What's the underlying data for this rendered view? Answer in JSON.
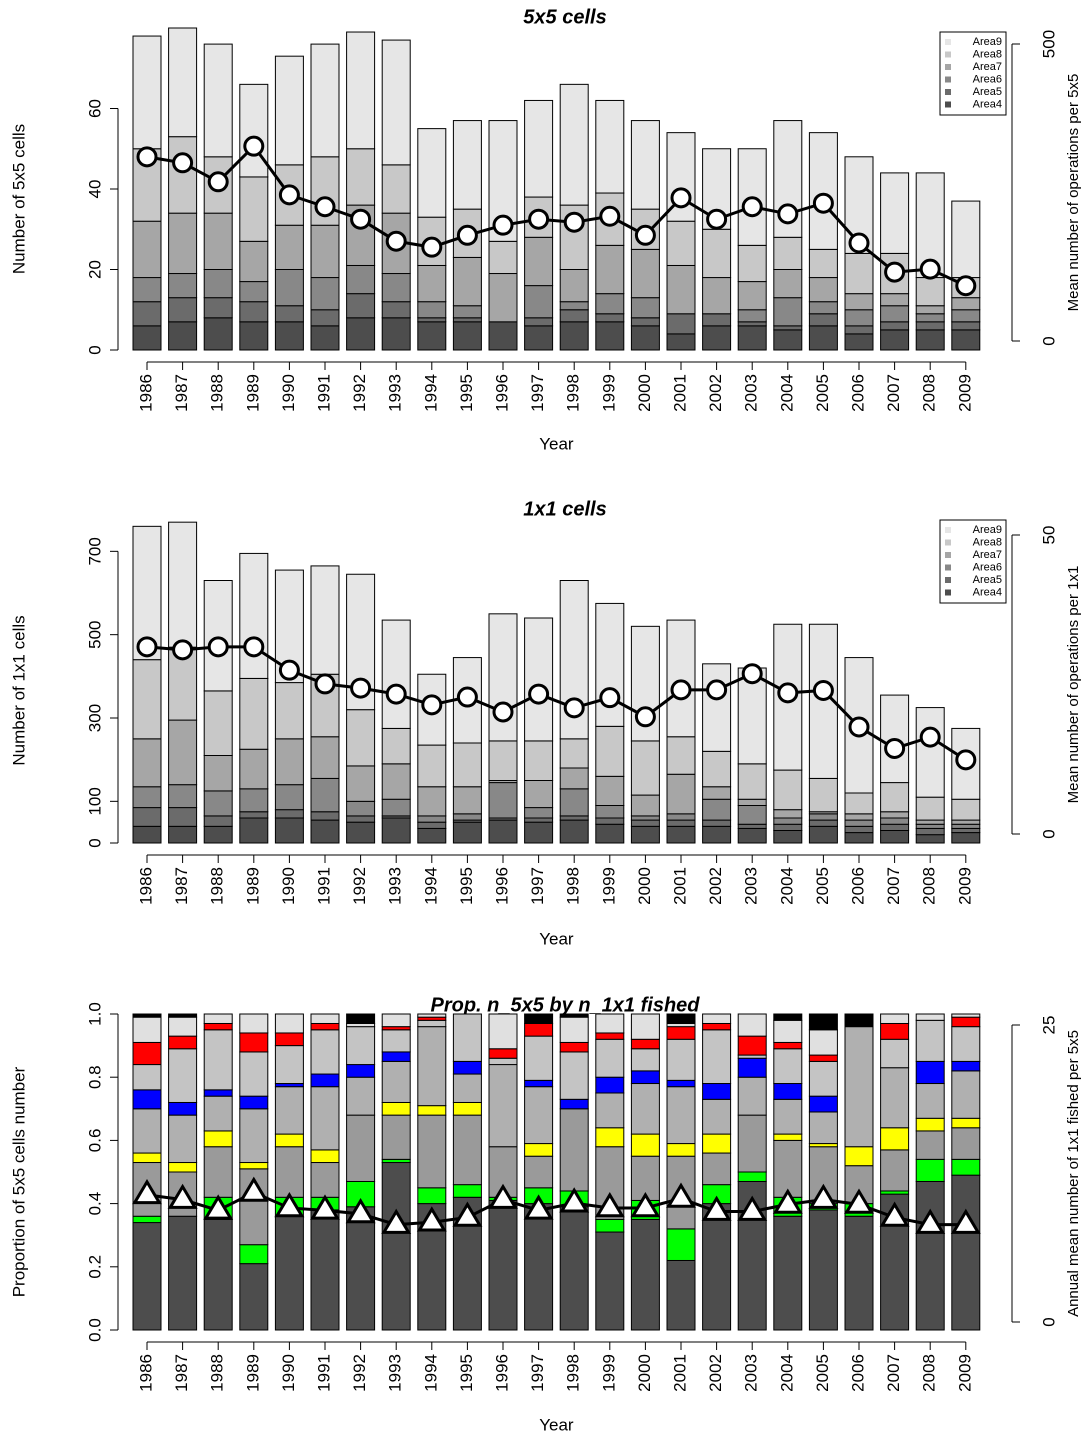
{
  "chart_data": [
    {
      "type": "bar",
      "title": "5x5 cells",
      "xlabel": "Year",
      "ylabel": "Number of 5x5 cells",
      "y2label": "Mean number of operations per 5x5",
      "categories": [
        "1986",
        "1987",
        "1988",
        "1989",
        "1990",
        "1991",
        "1992",
        "1993",
        "1994",
        "1995",
        "1996",
        "1997",
        "1998",
        "1999",
        "2000",
        "2001",
        "2002",
        "2003",
        "2004",
        "2005",
        "2006",
        "2007",
        "2008",
        "2009"
      ],
      "stacked": true,
      "legend": "top-right",
      "marker": "circle",
      "ylim": [
        0,
        80
      ],
      "yticks": [
        0,
        20,
        40,
        60
      ],
      "y2lim": [
        0,
        500
      ],
      "y2ticks": [
        0,
        500
      ],
      "series": [
        {
          "name": "Area4",
          "color": "#4d4d4d",
          "values": [
            6,
            7,
            8,
            7,
            7,
            6,
            8,
            8,
            7,
            7,
            7,
            6,
            7,
            7,
            6,
            4,
            6,
            6,
            5,
            6,
            4,
            5,
            5,
            5
          ]
        },
        {
          "name": "Area5",
          "color": "#6b6b6b",
          "values": [
            6,
            6,
            5,
            5,
            4,
            4,
            6,
            4,
            1,
            1,
            0,
            2,
            3,
            2,
            2,
            5,
            3,
            1,
            1,
            3,
            2,
            2,
            2,
            2
          ]
        },
        {
          "name": "Area6",
          "color": "#888888",
          "values": [
            6,
            6,
            7,
            5,
            9,
            8,
            7,
            7,
            4,
            3,
            0,
            8,
            2,
            5,
            5,
            0,
            0,
            3,
            7,
            3,
            4,
            4,
            2,
            3
          ]
        },
        {
          "name": "Area7",
          "color": "#a6a6a6",
          "values": [
            14,
            15,
            14,
            10,
            11,
            13,
            15,
            15,
            9,
            12,
            12,
            12,
            8,
            12,
            12,
            12,
            9,
            7,
            7,
            6,
            4,
            3,
            2,
            3
          ]
        },
        {
          "name": "Area8",
          "color": "#c8c8c8",
          "values": [
            18,
            19,
            14,
            16,
            15,
            17,
            14,
            12,
            12,
            12,
            8,
            10,
            16,
            13,
            10,
            11,
            12,
            9,
            8,
            7,
            10,
            10,
            7,
            5
          ]
        },
        {
          "name": "Area9",
          "color": "#e6e6e6",
          "values": [
            28,
            27,
            28,
            23,
            27,
            28,
            29,
            31,
            22,
            22,
            30,
            24,
            30,
            23,
            22,
            22,
            20,
            24,
            29,
            29,
            24,
            20,
            26,
            19
          ]
        },
        {
          "type": "line",
          "axis": "y2",
          "color": "#000000",
          "values": [
            310,
            300,
            268,
            328,
            246,
            226,
            205,
            168,
            158,
            178,
            195,
            205,
            200,
            210,
            178,
            241,
            205,
            226,
            214,
            232,
            165,
            116,
            121,
            93
          ]
        }
      ]
    },
    {
      "type": "bar",
      "title": "1x1 cells",
      "xlabel": "Year",
      "ylabel": "Number of 1x1 cells",
      "y2label": "Mean number of operations per 1x1",
      "categories": [
        "1986",
        "1987",
        "1988",
        "1989",
        "1990",
        "1991",
        "1992",
        "1993",
        "1994",
        "1995",
        "1996",
        "1997",
        "1998",
        "1999",
        "2000",
        "2001",
        "2002",
        "2003",
        "2004",
        "2005",
        "2006",
        "2007",
        "2008",
        "2009"
      ],
      "stacked": true,
      "legend": "top-right",
      "marker": "circle",
      "ylim": [
        0,
        780
      ],
      "yticks": [
        0,
        100,
        300,
        500,
        700
      ],
      "y2lim": [
        0,
        50
      ],
      "y2ticks": [
        0,
        50
      ],
      "series": [
        {
          "name": "Area4",
          "color": "#4d4d4d",
          "values": [
            40,
            40,
            40,
            60,
            60,
            55,
            50,
            60,
            35,
            50,
            55,
            50,
            55,
            45,
            40,
            40,
            40,
            35,
            30,
            40,
            25,
            30,
            20,
            25
          ]
        },
        {
          "name": "Area5",
          "color": "#6b6b6b",
          "values": [
            45,
            45,
            25,
            15,
            20,
            20,
            15,
            5,
            15,
            5,
            5,
            10,
            10,
            15,
            15,
            15,
            15,
            10,
            15,
            15,
            15,
            15,
            15,
            10
          ]
        },
        {
          "name": "Area6",
          "color": "#888888",
          "values": [
            50,
            55,
            60,
            55,
            60,
            80,
            35,
            40,
            15,
            15,
            85,
            25,
            65,
            30,
            10,
            15,
            50,
            45,
            15,
            15,
            15,
            15,
            10,
            10
          ]
        },
        {
          "name": "Area7",
          "color": "#a6a6a6",
          "values": [
            115,
            155,
            85,
            95,
            110,
            100,
            85,
            85,
            70,
            65,
            5,
            65,
            50,
            70,
            50,
            95,
            30,
            15,
            20,
            5,
            15,
            15,
            10,
            10
          ]
        },
        {
          "name": "Area8",
          "color": "#c8c8c8",
          "values": [
            190,
            175,
            155,
            170,
            135,
            150,
            135,
            85,
            100,
            105,
            95,
            95,
            70,
            120,
            130,
            90,
            85,
            85,
            95,
            80,
            50,
            70,
            55,
            50
          ]
        },
        {
          "name": "Area9",
          "color": "#e6e6e6",
          "values": [
            320,
            300,
            265,
            300,
            270,
            260,
            325,
            260,
            170,
            205,
            305,
            295,
            380,
            295,
            275,
            280,
            210,
            230,
            350,
            370,
            325,
            210,
            215,
            170
          ]
        },
        {
          "type": "line",
          "axis": "y2",
          "color": "#000000",
          "values": [
            31.3,
            30.8,
            31.3,
            31.3,
            27.4,
            25.1,
            24.4,
            23.4,
            21.6,
            22.9,
            20.4,
            23.4,
            21.1,
            22.8,
            19.6,
            24.1,
            24.1,
            26.8,
            23.6,
            24.0,
            17.9,
            14.3,
            16.2,
            12.4
          ]
        }
      ]
    },
    {
      "type": "bar",
      "title": "Prop. n_5x5 by n_1x1 fished",
      "xlabel": "Year",
      "ylabel": "Proportion of 5x5 cells number",
      "y2label": "Annual mean number of 1x1 fished per 5x5",
      "categories": [
        "1986",
        "1987",
        "1988",
        "1989",
        "1990",
        "1991",
        "1992",
        "1993",
        "1994",
        "1995",
        "1996",
        "1997",
        "1998",
        "1999",
        "2000",
        "2001",
        "2002",
        "2003",
        "2004",
        "2005",
        "2006",
        "2007",
        "2008",
        "2009"
      ],
      "stacked": true,
      "marker": "triangle",
      "ylim": [
        0,
        1
      ],
      "yticks": [
        {
          "value": 0,
          "label": "0.0"
        },
        0.2,
        0.4,
        0.6,
        0.8,
        {
          "value": 1,
          "label": "1.0"
        }
      ],
      "y2lim": [
        0,
        25
      ],
      "y2ticks": [
        0,
        25
      ],
      "series": [
        {
          "color": "#4d4d4d",
          "values": [
            0.34,
            0.36,
            0.35,
            0.21,
            0.36,
            0.38,
            0.39,
            0.53,
            0.4,
            0.42,
            0.41,
            0.4,
            0.39,
            0.31,
            0.35,
            0.22,
            0.4,
            0.47,
            0.36,
            0.38,
            0.36,
            0.43,
            0.47,
            0.49
          ]
        },
        {
          "color": "#00ff00",
          "values": [
            0.02,
            0,
            0.07,
            0.06,
            0.06,
            0.04,
            0.08,
            0.01,
            0.05,
            0.04,
            0.01,
            0.05,
            0.05,
            0.04,
            0.06,
            0.1,
            0.06,
            0.03,
            0.06,
            0.02,
            0.04,
            0.01,
            0.07,
            0.05
          ]
        },
        {
          "color": "#9a9a9a",
          "values": [
            0.17,
            0.14,
            0.16,
            0.24,
            0.16,
            0.11,
            0.21,
            0.14,
            0.23,
            0.22,
            0.16,
            0.1,
            0.26,
            0.23,
            0.14,
            0.23,
            0.1,
            0.18,
            0.18,
            0.18,
            0.12,
            0.13,
            0.09,
            0.1
          ]
        },
        {
          "color": "#ffff00",
          "values": [
            0.03,
            0.03,
            0.05,
            0.02,
            0.04,
            0.04,
            0,
            0.04,
            0.03,
            0.04,
            0,
            0.04,
            0,
            0.06,
            0.07,
            0.04,
            0.06,
            0,
            0.02,
            0.01,
            0.06,
            0.07,
            0.04,
            0.03
          ]
        },
        {
          "color": "#b0b0b0",
          "values": [
            0.14,
            0.15,
            0.11,
            0.17,
            0.15,
            0.2,
            0.12,
            0.13,
            0.25,
            0.09,
            0.26,
            0.18,
            0,
            0.11,
            0.16,
            0.18,
            0.11,
            0.12,
            0.11,
            0.1,
            0.38,
            0.19,
            0.11,
            0.15
          ]
        },
        {
          "color": "#0000ff",
          "values": [
            0.06,
            0.04,
            0.02,
            0.04,
            0.01,
            0.04,
            0.04,
            0.03,
            0,
            0.04,
            0,
            0.02,
            0.03,
            0.05,
            0.04,
            0.02,
            0.05,
            0.06,
            0.05,
            0.05,
            0,
            0,
            0.07,
            0.03
          ]
        },
        {
          "color": "#c4c4c4",
          "values": [
            0.08,
            0.17,
            0.19,
            0.14,
            0.12,
            0.14,
            0.12,
            0.07,
            0.02,
            0.15,
            0.02,
            0.14,
            0.15,
            0.12,
            0.07,
            0.13,
            0.17,
            0.01,
            0.11,
            0.11,
            0,
            0.09,
            0.13,
            0.11
          ]
        },
        {
          "color": "#ff0000",
          "values": [
            0.07,
            0.04,
            0.02,
            0.06,
            0.04,
            0.02,
            0,
            0.01,
            0.01,
            0,
            0.03,
            0.04,
            0.03,
            0.02,
            0.03,
            0.04,
            0.02,
            0.06,
            0.02,
            0.02,
            0,
            0.05,
            0,
            0.03
          ]
        },
        {
          "color": "#e0e0e0",
          "values": [
            0.08,
            0.06,
            0.03,
            0.06,
            0.06,
            0.03,
            0.01,
            0.04,
            0.01,
            0,
            0.11,
            0,
            0.08,
            0.06,
            0.08,
            0.01,
            0.03,
            0.07,
            0.07,
            0.08,
            0,
            0.03,
            0.02,
            0.01
          ]
        },
        {
          "color": "#000000",
          "values": [
            0.01,
            0.01,
            0,
            0,
            0,
            0,
            0.03,
            0,
            0,
            0,
            0,
            0.03,
            0.01,
            0,
            0,
            0.03,
            0,
            0,
            0.02,
            0.05,
            0.04,
            0,
            0,
            0
          ]
        },
        {
          "type": "line",
          "axis": "y2",
          "color": "#000000",
          "values": [
            10.7,
            10.3,
            9.4,
            10.9,
            9.6,
            9.4,
            9.1,
            8.2,
            8.4,
            8.8,
            10.3,
            9.4,
            10.0,
            9.6,
            9.6,
            10.4,
            9.3,
            9.3,
            9.9,
            10.3,
            9.9,
            8.8,
            8.2,
            8.2
          ]
        }
      ]
    }
  ]
}
